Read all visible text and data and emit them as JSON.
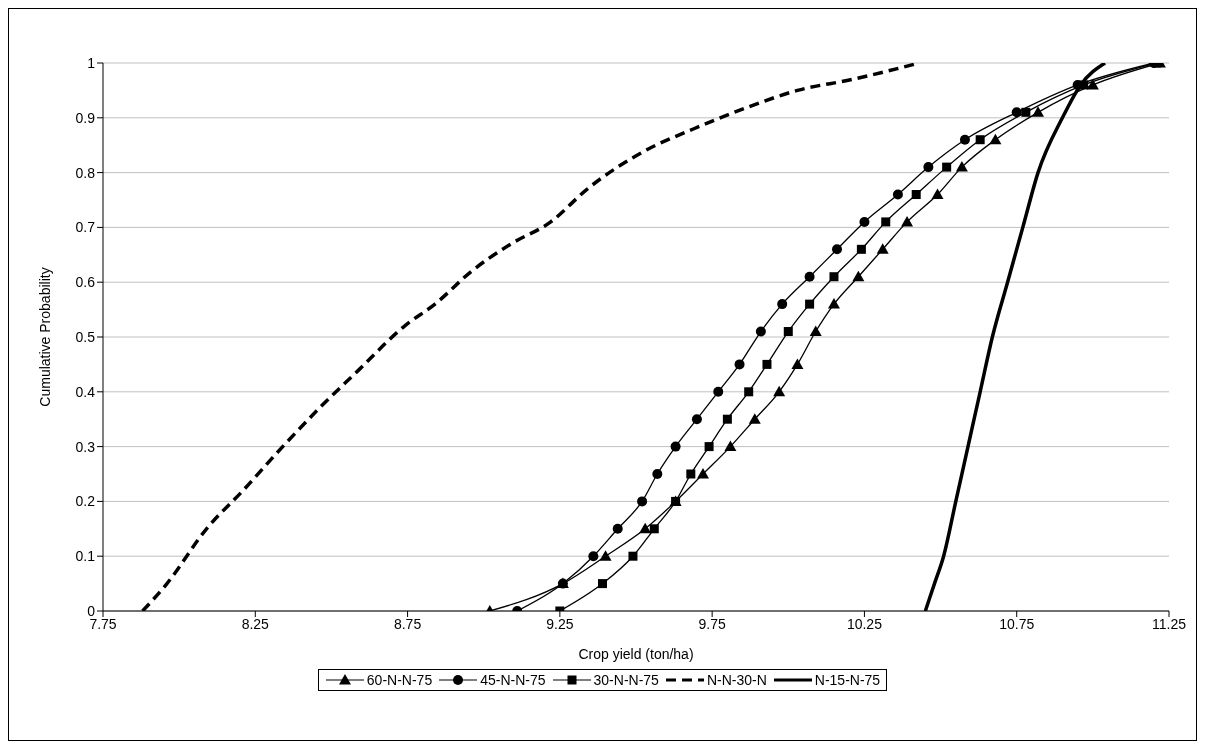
{
  "chart_data": {
    "type": "line",
    "xlabel": "Crop yield (ton/ha)",
    "ylabel": "Cumulative Probability",
    "xlim": [
      7.75,
      11.25
    ],
    "xticks": [
      7.75,
      8.25,
      8.75,
      9.25,
      9.75,
      10.25,
      10.75,
      11.25
    ],
    "ylim": [
      0,
      1
    ],
    "yticks": [
      0,
      0.1,
      0.2,
      0.3,
      0.4,
      0.5,
      0.6,
      0.7,
      0.8,
      0.9,
      1
    ],
    "grid": "y",
    "legend": "bottom",
    "series": [
      {
        "name": "60-N-N-75",
        "color": "#000000",
        "marker": "triangle",
        "line_style": "solid",
        "x": [
          9.02,
          9.26,
          9.4,
          9.53,
          9.63,
          9.72,
          9.81,
          9.89,
          9.97,
          10.03,
          10.09,
          10.15,
          10.23,
          10.31,
          10.39,
          10.49,
          10.57,
          10.68,
          10.82,
          11.0,
          11.22
        ],
        "values": [
          0,
          0.05,
          0.1,
          0.15,
          0.2,
          0.25,
          0.3,
          0.35,
          0.4,
          0.45,
          0.51,
          0.56,
          0.61,
          0.66,
          0.71,
          0.76,
          0.81,
          0.86,
          0.91,
          0.96,
          1
        ]
      },
      {
        "name": "45-N-N-75",
        "color": "#000000",
        "marker": "circle",
        "line_style": "solid",
        "x": [
          9.11,
          9.26,
          9.36,
          9.44,
          9.52,
          9.57,
          9.63,
          9.7,
          9.77,
          9.84,
          9.91,
          9.98,
          10.07,
          10.16,
          10.25,
          10.36,
          10.46,
          10.58,
          10.75,
          10.95,
          11.2
        ],
        "values": [
          0,
          0.05,
          0.1,
          0.15,
          0.2,
          0.25,
          0.3,
          0.35,
          0.4,
          0.45,
          0.51,
          0.56,
          0.61,
          0.66,
          0.71,
          0.76,
          0.81,
          0.86,
          0.91,
          0.96,
          1
        ]
      },
      {
        "name": "30-N-N-75",
        "color": "#000000",
        "marker": "square",
        "line_style": "solid",
        "x": [
          9.25,
          9.39,
          9.49,
          9.56,
          9.63,
          9.68,
          9.74,
          9.8,
          9.87,
          9.93,
          10.0,
          10.07,
          10.15,
          10.24,
          10.32,
          10.42,
          10.52,
          10.63,
          10.78,
          10.97,
          11.21
        ],
        "values": [
          0,
          0.05,
          0.1,
          0.15,
          0.2,
          0.25,
          0.3,
          0.35,
          0.4,
          0.45,
          0.51,
          0.56,
          0.61,
          0.66,
          0.71,
          0.76,
          0.81,
          0.86,
          0.91,
          0.96,
          1
        ]
      },
      {
        "name": "N-N-30-N",
        "color": "#000000",
        "marker": "none",
        "line_style": "dashed",
        "x": [
          7.88,
          7.96,
          8.09,
          8.21,
          8.34,
          8.46,
          8.59,
          8.74,
          8.84,
          8.96,
          9.09,
          9.22,
          9.34,
          9.53,
          9.69,
          9.87,
          10.03,
          10.21,
          10.43
        ],
        "values": [
          0,
          0.05,
          0.15,
          0.22,
          0.3,
          0.37,
          0.44,
          0.52,
          0.56,
          0.62,
          0.67,
          0.71,
          0.77,
          0.84,
          0.88,
          0.92,
          0.95,
          0.97,
          1
        ]
      },
      {
        "name": "N-15-N-75",
        "color": "#000000",
        "marker": "none",
        "line_style": "solid",
        "x": [
          10.45,
          10.48,
          10.51,
          10.55,
          10.59,
          10.63,
          10.67,
          10.72,
          10.77,
          10.82,
          10.9,
          10.96,
          11.04
        ],
        "values": [
          0,
          0.05,
          0.1,
          0.2,
          0.3,
          0.4,
          0.5,
          0.6,
          0.7,
          0.8,
          0.9,
          0.96,
          1
        ]
      }
    ]
  }
}
